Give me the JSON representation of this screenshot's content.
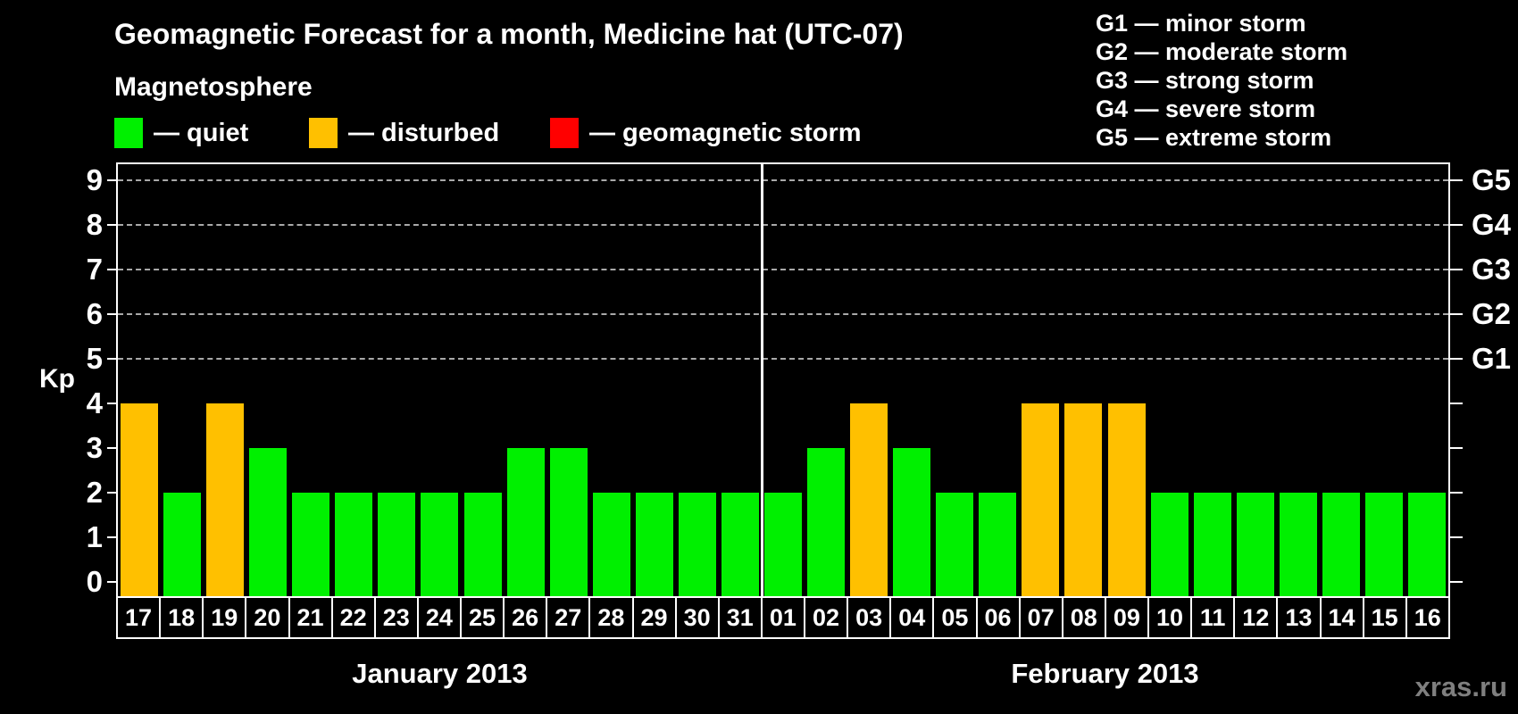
{
  "title": "Geomagnetic Forecast for a month, Medicine hat (UTC-07)",
  "watermark": "xras.ru",
  "magnetosphere": {
    "heading": "Magnetosphere",
    "items": [
      {
        "state": "quiet",
        "label": "— quiet",
        "color": "#00f000"
      },
      {
        "state": "disturbed",
        "label": "— disturbed",
        "color": "#ffc000"
      },
      {
        "state": "storm",
        "label": "— geomagnetic storm",
        "color": "#ff0000"
      }
    ]
  },
  "g_scale_legend": [
    "G1 — minor storm",
    "G2 — moderate storm",
    "G3 — strong storm",
    "G4 — severe storm",
    "G5 — extreme storm"
  ],
  "chart_data": {
    "type": "bar",
    "title": "Geomagnetic Forecast for a month, Medicine hat (UTC-07)",
    "ylabel": "Kp",
    "ylim": [
      0,
      9
    ],
    "yticks": [
      0,
      1,
      2,
      3,
      4,
      5,
      6,
      7,
      8,
      9
    ],
    "gridlines_at_kp": [
      5,
      6,
      7,
      8,
      9
    ],
    "grid_style": "dashed horizontal",
    "legend_position": "top",
    "right_axis_labels": [
      {
        "kp": 5,
        "label": "G1"
      },
      {
        "kp": 6,
        "label": "G2"
      },
      {
        "kp": 7,
        "label": "G3"
      },
      {
        "kp": 8,
        "label": "G4"
      },
      {
        "kp": 9,
        "label": "G5"
      }
    ],
    "state_colors": {
      "quiet": "#00f000",
      "disturbed": "#ffc000",
      "storm": "#ff0000"
    },
    "months": [
      {
        "label": "January 2013",
        "bars": [
          {
            "day": "17",
            "kp": 4,
            "state": "disturbed"
          },
          {
            "day": "18",
            "kp": 2,
            "state": "quiet"
          },
          {
            "day": "19",
            "kp": 4,
            "state": "disturbed"
          },
          {
            "day": "20",
            "kp": 3,
            "state": "quiet"
          },
          {
            "day": "21",
            "kp": 2,
            "state": "quiet"
          },
          {
            "day": "22",
            "kp": 2,
            "state": "quiet"
          },
          {
            "day": "23",
            "kp": 2,
            "state": "quiet"
          },
          {
            "day": "24",
            "kp": 2,
            "state": "quiet"
          },
          {
            "day": "25",
            "kp": 2,
            "state": "quiet"
          },
          {
            "day": "26",
            "kp": 3,
            "state": "quiet"
          },
          {
            "day": "27",
            "kp": 3,
            "state": "quiet"
          },
          {
            "day": "28",
            "kp": 2,
            "state": "quiet"
          },
          {
            "day": "29",
            "kp": 2,
            "state": "quiet"
          },
          {
            "day": "30",
            "kp": 2,
            "state": "quiet"
          },
          {
            "day": "31",
            "kp": 2,
            "state": "quiet"
          }
        ]
      },
      {
        "label": "February 2013",
        "bars": [
          {
            "day": "01",
            "kp": 2,
            "state": "quiet"
          },
          {
            "day": "02",
            "kp": 3,
            "state": "quiet"
          },
          {
            "day": "03",
            "kp": 4,
            "state": "disturbed"
          },
          {
            "day": "04",
            "kp": 3,
            "state": "quiet"
          },
          {
            "day": "05",
            "kp": 2,
            "state": "quiet"
          },
          {
            "day": "06",
            "kp": 2,
            "state": "quiet"
          },
          {
            "day": "07",
            "kp": 4,
            "state": "disturbed"
          },
          {
            "day": "08",
            "kp": 4,
            "state": "disturbed"
          },
          {
            "day": "09",
            "kp": 4,
            "state": "disturbed"
          },
          {
            "day": "10",
            "kp": 2,
            "state": "quiet"
          },
          {
            "day": "11",
            "kp": 2,
            "state": "quiet"
          },
          {
            "day": "12",
            "kp": 2,
            "state": "quiet"
          },
          {
            "day": "13",
            "kp": 2,
            "state": "quiet"
          },
          {
            "day": "14",
            "kp": 2,
            "state": "quiet"
          },
          {
            "day": "15",
            "kp": 2,
            "state": "quiet"
          },
          {
            "day": "16",
            "kp": 2,
            "state": "quiet"
          }
        ]
      }
    ]
  }
}
